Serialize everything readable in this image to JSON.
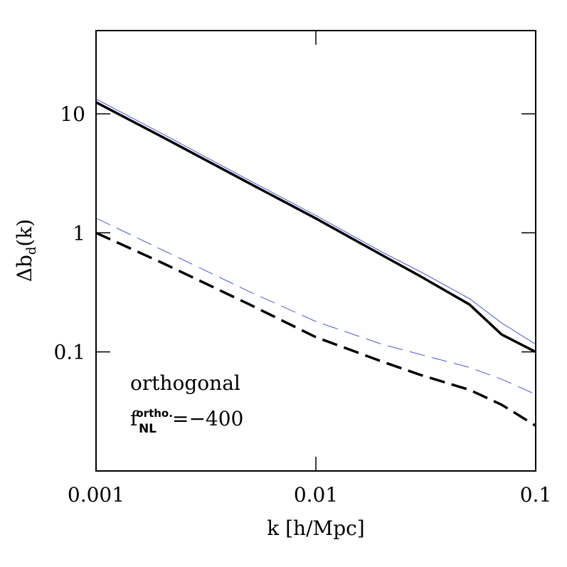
{
  "chart_data": {
    "type": "line",
    "log_x": true,
    "log_y": true,
    "xlabel": "k [h/Mpc]",
    "ylabel": {
      "main": "Δb",
      "sub": "d",
      "rest": "(k)"
    },
    "annotations": [
      "orthogonal"
    ],
    "fnl_label": {
      "base": "f",
      "sup": "ortho.",
      "sub": "NL",
      "text": "=−400"
    },
    "x": [
      0.001,
      0.002,
      0.005,
      0.01,
      0.02,
      0.03,
      0.05,
      0.07,
      0.1
    ],
    "series": [
      {
        "color": "#000000",
        "dash": "solid",
        "width": 3.5,
        "values": [
          12.5,
          6.4,
          2.6,
          1.32,
          0.65,
          0.43,
          0.25,
          0.14,
          0.1
        ]
      },
      {
        "color": "#3344dd",
        "dash": "solid",
        "width": 0.9,
        "values": [
          13.3,
          6.8,
          2.75,
          1.4,
          0.69,
          0.47,
          0.28,
          0.175,
          0.116
        ]
      },
      {
        "color": "#000000",
        "dash": "dashed",
        "width": 3.5,
        "values": [
          1.0,
          0.56,
          0.25,
          0.133,
          0.083,
          0.064,
          0.048,
          0.036,
          0.024
        ]
      },
      {
        "color": "#3344dd",
        "dash": "dashed",
        "width": 0.9,
        "values": [
          1.33,
          0.72,
          0.32,
          0.18,
          0.116,
          0.095,
          0.074,
          0.059,
          0.044
        ]
      }
    ],
    "xlim": [
      0.001,
      0.1
    ],
    "xticks": [
      0.001,
      0.01,
      0.1
    ],
    "ylim": [
      0.01,
      50
    ],
    "yticks": [
      0.1,
      1,
      10
    ]
  }
}
